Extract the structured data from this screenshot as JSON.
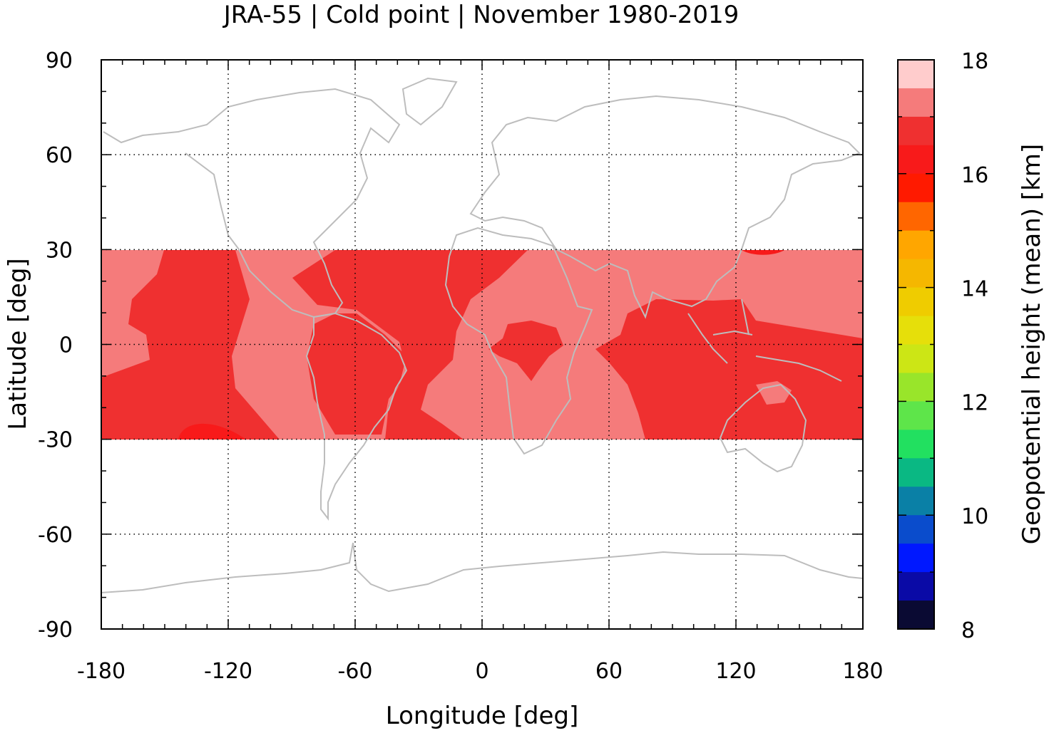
{
  "title": "JRA-55 | Cold point | November 1980-2019",
  "map": {
    "xlabel": "Longitude [deg]",
    "ylabel": "Latitude [deg]",
    "xlim": [
      -180,
      180
    ],
    "ylim": [
      -90,
      90
    ],
    "xticks": [
      -180,
      -120,
      -60,
      0,
      60,
      120,
      180
    ],
    "yticks": [
      90,
      60,
      30,
      0,
      -30,
      -60,
      -90
    ],
    "grid": true,
    "data_lat_range": [
      -30,
      30
    ],
    "coastline_color": "#bdbdbd",
    "fields": {
      "background_level": "17.0-17.5 km",
      "dominant_level": "16.5-17.0 km",
      "max_level": "16.0-16.5 km"
    }
  },
  "colorbar": {
    "label": "Geopotential height (mean) [km]",
    "range": [
      8,
      18
    ],
    "step": 0.5,
    "ticks": [
      18,
      16,
      14,
      12,
      10,
      8
    ],
    "colors_top_to_bottom": [
      "#ffcccc",
      "#f57b7b",
      "#ef3030",
      "#f81a1a",
      "#ff1a00",
      "#ff6600",
      "#ffa600",
      "#f5b700",
      "#efcc00",
      "#e6df0a",
      "#cce615",
      "#99e52a",
      "#5ee54a",
      "#22e060",
      "#0ab883",
      "#0a80a6",
      "#0a4ccc",
      "#0018ff",
      "#0a0aa6",
      "#0a0a33"
    ]
  }
}
